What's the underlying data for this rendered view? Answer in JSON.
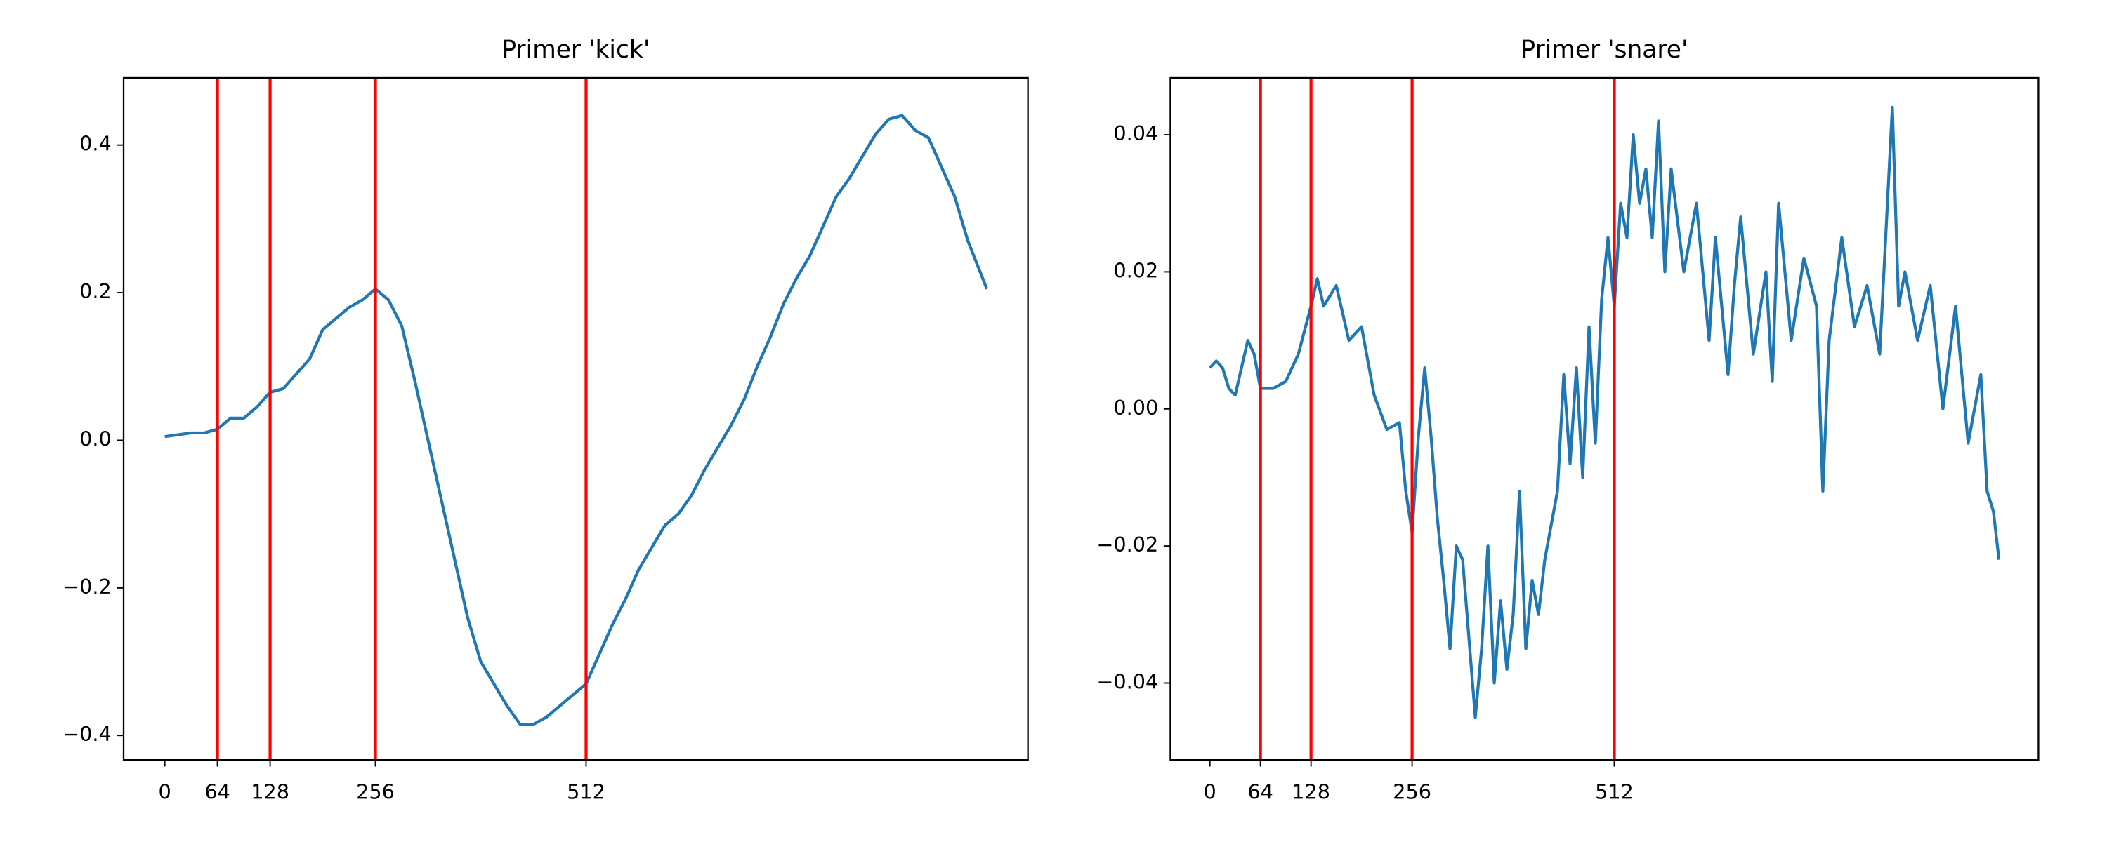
{
  "chart_data": [
    {
      "type": "line",
      "title": "Primer 'kick'",
      "color": "#1f77b4",
      "vline_color": "#ff0000",
      "xlim": [
        -50,
        1049
      ],
      "ylim": [
        -0.433,
        0.491
      ],
      "xticks": [
        0,
        64,
        128,
        256,
        512
      ],
      "yticks": [
        {
          "value": -0.4,
          "label": "−0.4"
        },
        {
          "value": -0.2,
          "label": "−0.2"
        },
        {
          "value": 0,
          "label": "0.0"
        },
        0.2,
        0.4
      ],
      "vlines": [
        64,
        128,
        256,
        512
      ],
      "x": [
        0,
        32,
        48,
        64,
        80,
        96,
        112,
        128,
        144,
        160,
        176,
        192,
        208,
        224,
        240,
        256,
        272,
        288,
        304,
        320,
        336,
        352,
        368,
        384,
        400,
        416,
        432,
        448,
        464,
        480,
        496,
        512,
        528,
        544,
        560,
        576,
        592,
        608,
        624,
        640,
        656,
        672,
        688,
        704,
        720,
        736,
        752,
        768,
        784,
        800,
        816,
        832,
        848,
        864,
        880,
        896,
        912,
        928,
        944,
        960,
        976,
        992,
        999
      ],
      "values": [
        0.005,
        0.01,
        0.01,
        0.015,
        0.03,
        0.03,
        0.045,
        0.065,
        0.07,
        0.09,
        0.11,
        0.15,
        0.165,
        0.18,
        0.19,
        0.205,
        0.19,
        0.155,
        0.08,
        0.0,
        -0.08,
        -0.16,
        -0.24,
        -0.3,
        -0.33,
        -0.36,
        -0.385,
        -0.385,
        -0.375,
        -0.36,
        -0.345,
        -0.33,
        -0.29,
        -0.25,
        -0.215,
        -0.175,
        -0.145,
        -0.115,
        -0.1,
        -0.075,
        -0.04,
        -0.01,
        0.02,
        0.055,
        0.1,
        0.14,
        0.185,
        0.22,
        0.25,
        0.29,
        0.33,
        0.355,
        0.385,
        0.415,
        0.435,
        0.44,
        0.42,
        0.41,
        0.37,
        0.33,
        0.27,
        0.225,
        0.205
      ]
    },
    {
      "type": "line",
      "title": "Primer 'snare'",
      "color": "#1f77b4",
      "vline_color": "#ff0000",
      "xlim": [
        -50,
        1049
      ],
      "ylim": [
        -0.0512,
        0.0483
      ],
      "xticks": [
        0,
        64,
        128,
        256,
        512
      ],
      "yticks": [
        {
          "value": -0.04,
          "label": "−0.04"
        },
        {
          "value": -0.02,
          "label": "−0.02"
        },
        {
          "value": 0,
          "label": "0.00"
        },
        0.02,
        0.04
      ],
      "vlines": [
        64,
        128,
        256,
        512
      ],
      "x": [
        0,
        8,
        16,
        24,
        32,
        40,
        48,
        56,
        64,
        72,
        80,
        96,
        112,
        128,
        136,
        144,
        160,
        176,
        192,
        208,
        224,
        240,
        248,
        256,
        264,
        272,
        280,
        288,
        296,
        304,
        312,
        320,
        336,
        344,
        352,
        360,
        368,
        376,
        384,
        392,
        400,
        408,
        416,
        424,
        440,
        448,
        456,
        464,
        472,
        480,
        488,
        496,
        504,
        512,
        520,
        528,
        536,
        544,
        552,
        560,
        568,
        576,
        584,
        600,
        616,
        632,
        640,
        656,
        664,
        672,
        688,
        704,
        712,
        720,
        736,
        752,
        768,
        776,
        784,
        800,
        816,
        832,
        848,
        864,
        872,
        880,
        896,
        912,
        928,
        944,
        960,
        976,
        984,
        992,
        999
      ],
      "values": [
        0.006,
        0.007,
        0.006,
        0.003,
        0.002,
        0.006,
        0.01,
        0.008,
        0.003,
        0.003,
        0.003,
        0.004,
        0.008,
        0.015,
        0.019,
        0.015,
        0.018,
        0.01,
        0.012,
        0.002,
        -0.003,
        -0.002,
        -0.012,
        -0.018,
        -0.004,
        0.006,
        -0.004,
        -0.016,
        -0.025,
        -0.035,
        -0.02,
        -0.022,
        -0.045,
        -0.035,
        -0.02,
        -0.04,
        -0.028,
        -0.038,
        -0.03,
        -0.012,
        -0.035,
        -0.025,
        -0.03,
        -0.022,
        -0.012,
        0.005,
        -0.008,
        0.006,
        -0.01,
        0.012,
        -0.005,
        0.016,
        0.025,
        0.015,
        0.03,
        0.025,
        0.04,
        0.03,
        0.035,
        0.025,
        0.042,
        0.02,
        0.035,
        0.02,
        0.03,
        0.01,
        0.025,
        0.005,
        0.018,
        0.028,
        0.008,
        0.02,
        0.004,
        0.03,
        0.01,
        0.022,
        0.015,
        -0.012,
        0.01,
        0.025,
        0.012,
        0.018,
        0.008,
        0.044,
        0.015,
        0.02,
        0.01,
        0.018,
        0.0,
        0.015,
        -0.005,
        0.005,
        -0.012,
        -0.015,
        -0.022
      ]
    }
  ]
}
